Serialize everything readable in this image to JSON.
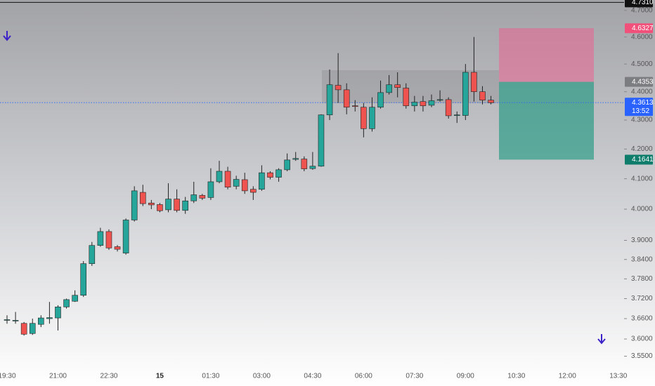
{
  "chart_data": {
    "type": "candlestick",
    "log_scale": true,
    "grid": false,
    "categories": [
      "19:30",
      null,
      null,
      null,
      null,
      null,
      "21:00",
      null,
      null,
      null,
      null,
      null,
      "22:30",
      null,
      null,
      null,
      null,
      null,
      "15",
      null,
      null,
      null,
      null,
      null,
      "01:30",
      null,
      null,
      null,
      null,
      null,
      "03:00",
      null,
      null,
      null,
      null,
      null,
      "04:30",
      null,
      null,
      null,
      null,
      null,
      "06:00",
      null,
      null,
      null,
      null,
      null,
      "07:30",
      null,
      null,
      null,
      null,
      null,
      "09:00",
      null,
      null,
      null,
      null,
      null,
      "10:30",
      null,
      null,
      null,
      null,
      null,
      "12:00",
      null,
      null,
      null,
      null,
      null,
      "13:30",
      null,
      null,
      null
    ],
    "open": [
      3.655,
      3.654,
      3.646,
      3.616,
      3.643,
      3.66,
      3.662,
      3.695,
      3.712,
      3.73,
      3.827,
      3.884,
      3.928,
      3.88,
      3.86,
      3.965,
      4.055,
      4.02,
      4.015,
      3.998,
      4.033,
      3.996,
      4.027,
      4.045,
      4.038,
      4.09,
      4.125,
      4.075,
      4.097,
      4.065,
      4.065,
      4.12,
      4.105,
      4.13,
      4.165,
      4.166,
      4.134,
      4.142,
      4.318,
      4.423,
      4.407,
      4.35,
      4.345,
      4.27,
      4.345,
      4.397,
      4.425,
      4.413,
      4.35,
      4.365,
      4.352,
      4.37,
      4.372,
      4.316,
      4.316,
      4.47,
      4.4,
      4.37,
      null,
      null,
      null,
      null,
      null,
      null,
      null,
      null,
      null,
      null,
      null,
      null,
      null,
      null,
      null,
      null,
      null,
      null
    ],
    "high": [
      3.67,
      3.68,
      3.65,
      3.66,
      3.67,
      3.71,
      3.7,
      3.72,
      3.745,
      3.835,
      3.895,
      3.94,
      3.935,
      3.885,
      3.97,
      4.075,
      4.08,
      4.03,
      4.02,
      4.085,
      4.065,
      4.04,
      4.09,
      4.05,
      4.135,
      4.16,
      4.14,
      4.11,
      4.12,
      4.075,
      4.145,
      4.125,
      4.135,
      4.185,
      4.19,
      4.175,
      4.19,
      4.32,
      4.48,
      4.54,
      4.43,
      4.37,
      4.36,
      4.38,
      4.44,
      4.46,
      4.47,
      4.43,
      4.385,
      4.385,
      4.39,
      4.405,
      4.38,
      4.33,
      4.5,
      4.6,
      4.42,
      4.385,
      null,
      null,
      null,
      null,
      null,
      null,
      null,
      null,
      null,
      null,
      null,
      null,
      null,
      null,
      null,
      null,
      null,
      null
    ],
    "low": [
      3.645,
      3.645,
      3.61,
      3.612,
      3.635,
      3.645,
      3.625,
      3.69,
      3.71,
      3.725,
      3.82,
      3.88,
      3.87,
      3.865,
      3.855,
      3.96,
      4.01,
      4.0,
      3.99,
      3.99,
      3.99,
      3.985,
      4.02,
      4.03,
      4.03,
      4.085,
      4.065,
      4.065,
      4.05,
      4.03,
      4.06,
      4.098,
      4.09,
      4.125,
      4.16,
      4.125,
      4.13,
      4.14,
      4.3,
      4.36,
      4.32,
      4.33,
      4.24,
      4.26,
      4.34,
      4.39,
      4.38,
      4.34,
      4.33,
      4.33,
      4.345,
      4.365,
      4.305,
      4.29,
      4.3,
      4.365,
      4.355,
      4.355,
      null,
      null,
      null,
      null,
      null,
      null,
      null,
      null,
      null,
      null,
      null,
      null,
      null,
      null,
      null,
      null,
      null,
      null
    ],
    "close": [
      3.657,
      3.655,
      3.614,
      3.646,
      3.662,
      3.663,
      3.695,
      3.717,
      3.73,
      3.827,
      3.884,
      3.928,
      3.876,
      3.872,
      3.965,
      4.06,
      4.018,
      4.014,
      3.995,
      4.033,
      3.996,
      4.027,
      4.047,
      4.036,
      4.09,
      4.125,
      4.072,
      4.098,
      4.06,
      4.055,
      4.12,
      4.105,
      4.13,
      4.163,
      4.168,
      4.133,
      4.142,
      4.318,
      4.425,
      4.407,
      4.345,
      4.348,
      4.27,
      4.345,
      4.397,
      4.425,
      4.415,
      4.35,
      4.363,
      4.35,
      4.368,
      4.372,
      4.315,
      4.318,
      4.47,
      4.4,
      4.37,
      4.361,
      null,
      null,
      null,
      null,
      null,
      null,
      null,
      null,
      null,
      null,
      null,
      null,
      null,
      null,
      null,
      null,
      null,
      null
    ],
    "up_color": "#26a69a",
    "down_color": "#ef5350",
    "ylim": [
      3.525,
      4.74
    ],
    "yticks": [
      {
        "value": 3.55,
        "label": "3.5500"
      },
      {
        "value": 3.6,
        "label": "3.6000"
      },
      {
        "value": 3.66,
        "label": "3.6600"
      },
      {
        "value": 3.72,
        "label": "3.7200"
      },
      {
        "value": 3.78,
        "label": "3.7800"
      },
      {
        "value": 3.84,
        "label": "3.8400"
      },
      {
        "value": 3.9,
        "label": "3.9000"
      },
      {
        "value": 4.0,
        "label": "4.0000"
      },
      {
        "value": 4.1,
        "label": "4.1000"
      },
      {
        "value": 4.2,
        "label": "4.2000"
      },
      {
        "value": 4.3,
        "label": "4.3000"
      },
      {
        "value": 4.4,
        "label": "4.4000"
      },
      {
        "value": 4.5,
        "label": "4.5000"
      },
      {
        "value": 4.6,
        "label": "4.6000"
      },
      {
        "value": 4.7,
        "label": "4.7000"
      }
    ],
    "high_line": {
      "value": 4.731,
      "label": "4.7310"
    },
    "last_price": {
      "value": 4.3613,
      "countdown": "13:52"
    },
    "position": {
      "stop": 4.6327,
      "entry": 4.4353,
      "target": 4.1641
    }
  }
}
